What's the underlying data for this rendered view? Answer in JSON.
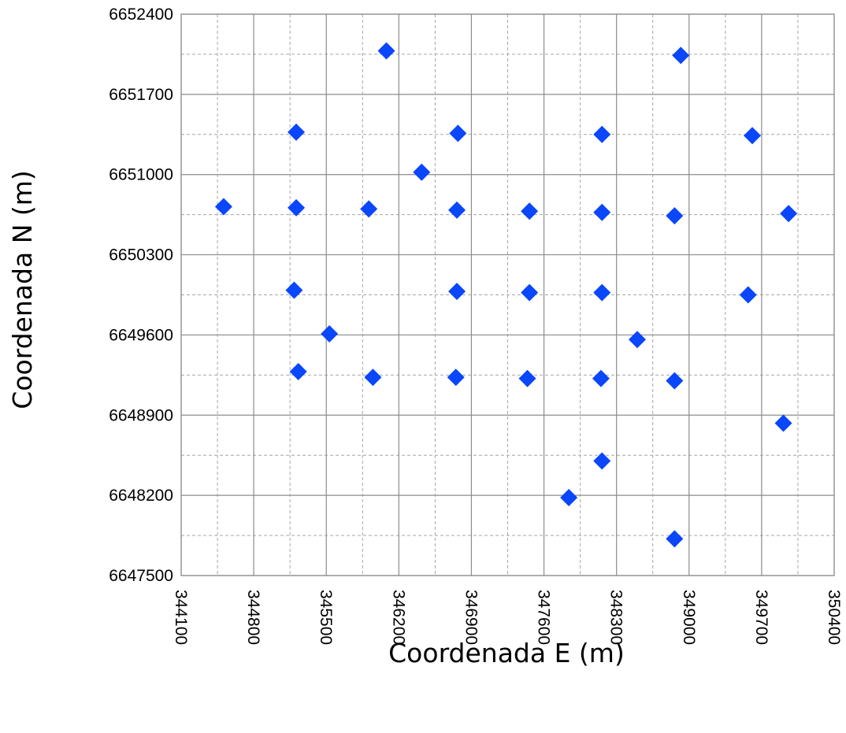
{
  "chart_data": {
    "type": "scatter",
    "xlabel": "Coordenada E (m)",
    "ylabel": "Coordenada N (m)",
    "xlim": [
      344100,
      350400
    ],
    "ylim": [
      6647500,
      6652400
    ],
    "x_ticks": [
      344100,
      344800,
      345500,
      346200,
      346900,
      347600,
      348300,
      349000,
      349700,
      350400
    ],
    "y_ticks": [
      6647500,
      6648200,
      6648900,
      6649600,
      6650300,
      6651000,
      6651700,
      6652400
    ],
    "x_tick_labels": [
      "344100",
      "344800",
      "345500",
      "346200",
      "346900",
      "347600",
      "348300",
      "349000",
      "349700",
      "350400"
    ],
    "y_tick_labels": [
      "6647500",
      "6648200",
      "6648900",
      "6649600",
      "6650300",
      "6651000",
      "6651700",
      "6652400"
    ],
    "major_grid": true,
    "minor_grid": "dashed",
    "marker": "diamond",
    "marker_color": "#0A46FA",
    "series": [
      {
        "points": [
          {
            "x": 346080,
            "y": 6652080
          },
          {
            "x": 348920,
            "y": 6652040
          },
          {
            "x": 345210,
            "y": 6651370
          },
          {
            "x": 346770,
            "y": 6651360
          },
          {
            "x": 348160,
            "y": 6651350
          },
          {
            "x": 349610,
            "y": 6651340
          },
          {
            "x": 346420,
            "y": 6651020
          },
          {
            "x": 344510,
            "y": 6650720
          },
          {
            "x": 345210,
            "y": 6650710
          },
          {
            "x": 345910,
            "y": 6650700
          },
          {
            "x": 346760,
            "y": 6650690
          },
          {
            "x": 347460,
            "y": 6650680
          },
          {
            "x": 348160,
            "y": 6650670
          },
          {
            "x": 348860,
            "y": 6650640
          },
          {
            "x": 349960,
            "y": 6650660
          },
          {
            "x": 345190,
            "y": 6649990
          },
          {
            "x": 346760,
            "y": 6649980
          },
          {
            "x": 347460,
            "y": 6649970
          },
          {
            "x": 348160,
            "y": 6649970
          },
          {
            "x": 349570,
            "y": 6649950
          },
          {
            "x": 345530,
            "y": 6649610
          },
          {
            "x": 348500,
            "y": 6649560
          },
          {
            "x": 345230,
            "y": 6649280
          },
          {
            "x": 345950,
            "y": 6649230
          },
          {
            "x": 346750,
            "y": 6649230
          },
          {
            "x": 347440,
            "y": 6649220
          },
          {
            "x": 348150,
            "y": 6649220
          },
          {
            "x": 348860,
            "y": 6649200
          },
          {
            "x": 349910,
            "y": 6648830
          },
          {
            "x": 348160,
            "y": 6648500
          },
          {
            "x": 347840,
            "y": 6648180
          },
          {
            "x": 348860,
            "y": 6647820
          }
        ]
      }
    ]
  }
}
